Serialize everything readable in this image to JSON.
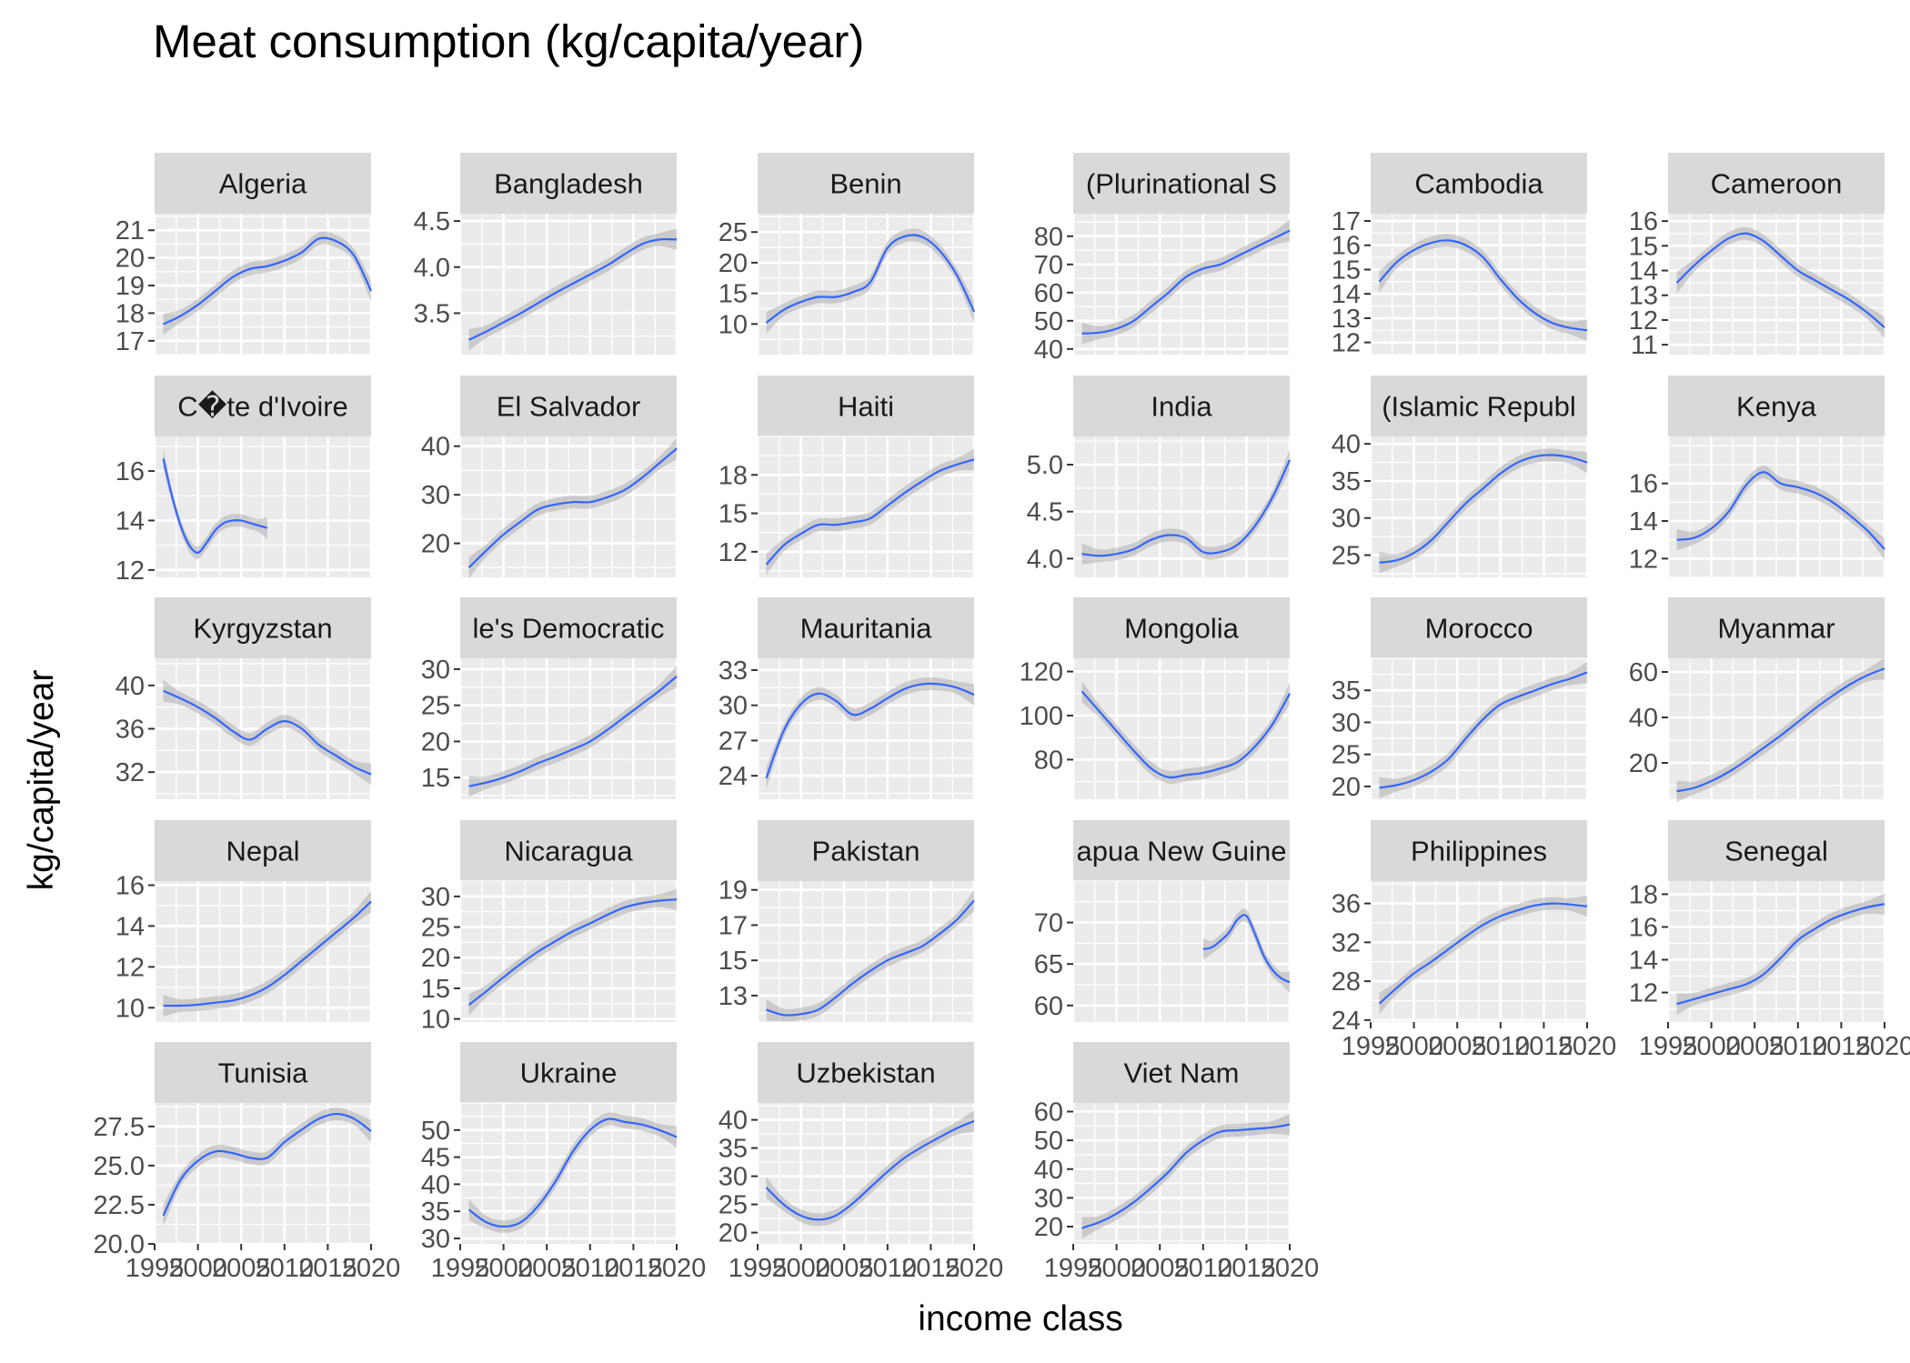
{
  "chart_data": {
    "type": "line",
    "title": "Meat consumption (kg/capita/year)",
    "xlabel": "income class",
    "ylabel": "kg/capita/year",
    "xlim": [
      1995,
      2020
    ],
    "x_ticks": [
      "1995",
      "2000",
      "2005",
      "2010",
      "2015",
      "2020"
    ],
    "grid": true,
    "series_color": "#3366ff",
    "band_color": "#999999",
    "panel_background": "#ebebeb",
    "strip_background": "#d9d9d9",
    "panels": [
      {
        "name": "Algeria",
        "ylim": [
          16.5,
          21.6
        ],
        "yticks": [
          "17",
          "18",
          "19",
          "20",
          "21"
        ],
        "x": [
          1996,
          1998,
          2000,
          2002,
          2004,
          2006,
          2008,
          2010,
          2012,
          2014,
          2016,
          2018,
          2020
        ],
        "y": [
          17.6,
          17.9,
          18.3,
          18.8,
          19.3,
          19.6,
          19.7,
          19.9,
          20.2,
          20.7,
          20.6,
          20.1,
          18.8
        ]
      },
      {
        "name": "Bangladesh",
        "ylim": [
          3.05,
          4.58
        ],
        "yticks": [
          "3.5",
          "4.0",
          "4.5"
        ],
        "x": [
          1996,
          1998,
          2000,
          2002,
          2004,
          2006,
          2008,
          2010,
          2012,
          2014,
          2016,
          2018,
          2020
        ],
        "y": [
          3.21,
          3.3,
          3.4,
          3.5,
          3.61,
          3.72,
          3.82,
          3.92,
          4.02,
          4.14,
          4.25,
          4.3,
          4.3
        ]
      },
      {
        "name": "Benin",
        "ylim": [
          5,
          28
        ],
        "yticks": [
          "10",
          "15",
          "20",
          "25"
        ],
        "x": [
          1996,
          1998,
          2000,
          2002,
          2004,
          2006,
          2008,
          2010,
          2012,
          2014,
          2016,
          2018,
          2020
        ],
        "y": [
          10.2,
          12.3,
          13.6,
          14.4,
          14.4,
          15.2,
          16.8,
          22.4,
          24.3,
          24.2,
          22.0,
          18.0,
          12.0
        ]
      },
      {
        "name": "(Plurinational S",
        "ylim": [
          38,
          88
        ],
        "yticks": [
          "40",
          "50",
          "60",
          "70",
          "80"
        ],
        "x": [
          1996,
          1998,
          2000,
          2002,
          2004,
          2006,
          2008,
          2010,
          2012,
          2014,
          2016,
          2018,
          2020
        ],
        "y": [
          45.5,
          45.8,
          47.2,
          50.0,
          55.0,
          60.0,
          65.5,
          68.5,
          70.0,
          73.0,
          76.0,
          79.0,
          82.0
        ]
      },
      {
        "name": "Cambodia",
        "ylim": [
          11.5,
          17.3
        ],
        "yticks": [
          "12",
          "13",
          "14",
          "15",
          "16",
          "17"
        ],
        "x": [
          1996,
          1998,
          2000,
          2002,
          2004,
          2006,
          2008,
          2010,
          2012,
          2014,
          2016,
          2018,
          2020
        ],
        "y": [
          14.5,
          15.3,
          15.8,
          16.1,
          16.2,
          16.0,
          15.5,
          14.6,
          13.8,
          13.2,
          12.8,
          12.6,
          12.5
        ]
      },
      {
        "name": "Cameroon",
        "ylim": [
          10.6,
          16.3
        ],
        "yticks": [
          "11",
          "12",
          "13",
          "14",
          "15",
          "16"
        ],
        "x": [
          1996,
          1998,
          2000,
          2002,
          2004,
          2006,
          2008,
          2010,
          2012,
          2014,
          2016,
          2018,
          2020
        ],
        "y": [
          13.5,
          14.2,
          14.8,
          15.3,
          15.5,
          15.2,
          14.6,
          14.0,
          13.6,
          13.2,
          12.8,
          12.3,
          11.7
        ]
      },
      {
        "name": "C�te d'Ivoire",
        "ylim": [
          11.7,
          17.4
        ],
        "yticks": [
          "12",
          "14",
          "16"
        ],
        "x": [
          1996,
          1997,
          1998,
          1999,
          2000,
          2001,
          2002,
          2003,
          2004,
          2005,
          2006,
          2007,
          2008
        ],
        "y": [
          16.5,
          15.0,
          13.8,
          13.0,
          12.7,
          13.1,
          13.6,
          13.9,
          14.0,
          14.0,
          13.9,
          13.8,
          13.7
        ]
      },
      {
        "name": "El Salvador",
        "ylim": [
          13,
          42
        ],
        "yticks": [
          "20",
          "30",
          "40"
        ],
        "x": [
          1996,
          1998,
          2000,
          2002,
          2004,
          2006,
          2008,
          2010,
          2012,
          2014,
          2016,
          2018,
          2020
        ],
        "y": [
          15.0,
          18.5,
          21.8,
          24.5,
          27.0,
          28.0,
          28.5,
          28.5,
          29.5,
          31.0,
          33.5,
          36.5,
          39.5
        ]
      },
      {
        "name": "Haiti",
        "ylim": [
          10,
          21
        ],
        "yticks": [
          "12",
          "15",
          "18"
        ],
        "x": [
          1996,
          1998,
          2000,
          2002,
          2004,
          2006,
          2008,
          2010,
          2012,
          2014,
          2016,
          2018,
          2020
        ],
        "y": [
          11.0,
          12.5,
          13.4,
          14.1,
          14.1,
          14.3,
          14.6,
          15.6,
          16.6,
          17.5,
          18.3,
          18.8,
          19.2
        ]
      },
      {
        "name": "India",
        "ylim": [
          3.8,
          5.3
        ],
        "yticks": [
          "4.0",
          "4.5",
          "5.0"
        ],
        "x": [
          1996,
          1998,
          2000,
          2002,
          2004,
          2006,
          2008,
          2010,
          2012,
          2014,
          2016,
          2018,
          2020
        ],
        "y": [
          4.05,
          4.03,
          4.05,
          4.1,
          4.2,
          4.25,
          4.22,
          4.07,
          4.07,
          4.15,
          4.35,
          4.65,
          5.05
        ]
      },
      {
        "name": "(Islamic Republ",
        "ylim": [
          22,
          41
        ],
        "yticks": [
          "25",
          "30",
          "35",
          "40"
        ],
        "x": [
          1996,
          1998,
          2000,
          2002,
          2004,
          2006,
          2008,
          2010,
          2012,
          2014,
          2016,
          2018,
          2020
        ],
        "y": [
          24.0,
          24.3,
          25.3,
          27.0,
          29.5,
          32.0,
          34.0,
          36.0,
          37.5,
          38.3,
          38.5,
          38.2,
          37.5
        ]
      },
      {
        "name": "Kenya",
        "ylim": [
          11,
          18.5
        ],
        "yticks": [
          "12",
          "14",
          "16"
        ],
        "x": [
          1996,
          1998,
          2000,
          2002,
          2004,
          2006,
          2008,
          2010,
          2012,
          2014,
          2016,
          2018,
          2020
        ],
        "y": [
          13.0,
          13.1,
          13.6,
          14.5,
          15.9,
          16.6,
          16.0,
          15.8,
          15.5,
          15.0,
          14.3,
          13.5,
          12.5
        ]
      },
      {
        "name": "Kyrgyzstan",
        "ylim": [
          29.5,
          42.5
        ],
        "yticks": [
          "32",
          "36",
          "40"
        ],
        "x": [
          1996,
          1998,
          2000,
          2002,
          2004,
          2006,
          2008,
          2010,
          2012,
          2014,
          2016,
          2018,
          2020
        ],
        "y": [
          39.5,
          38.8,
          38.0,
          37.0,
          35.8,
          35.0,
          36.0,
          36.7,
          36.0,
          34.5,
          33.5,
          32.5,
          31.8
        ]
      },
      {
        "name": "le's Democratic",
        "ylim": [
          12,
          31.5
        ],
        "yticks": [
          "15",
          "20",
          "25",
          "30"
        ],
        "x": [
          1996,
          1998,
          2000,
          2002,
          2004,
          2006,
          2008,
          2010,
          2012,
          2014,
          2016,
          2018,
          2020
        ],
        "y": [
          13.8,
          14.3,
          15.0,
          15.9,
          17.0,
          17.9,
          18.9,
          20.0,
          21.6,
          23.4,
          25.2,
          27.0,
          29.0
        ]
      },
      {
        "name": "Mauritania",
        "ylim": [
          22,
          34
        ],
        "yticks": [
          "24",
          "27",
          "30",
          "33"
        ],
        "x": [
          1996,
          1998,
          2000,
          2002,
          2004,
          2006,
          2008,
          2010,
          2012,
          2014,
          2016,
          2018,
          2020
        ],
        "y": [
          23.8,
          27.8,
          30.1,
          31.0,
          30.4,
          29.2,
          29.7,
          30.6,
          31.4,
          31.8,
          31.8,
          31.5,
          30.9
        ]
      },
      {
        "name": "Mongolia",
        "ylim": [
          62,
          126
        ],
        "yticks": [
          "80",
          "100",
          "120"
        ],
        "x": [
          1996,
          1998,
          2000,
          2002,
          2004,
          2006,
          2008,
          2010,
          2012,
          2014,
          2016,
          2018,
          2020
        ],
        "y": [
          111,
          102,
          93,
          84,
          76,
          72,
          73,
          74,
          76,
          79,
          86,
          96,
          110
        ]
      },
      {
        "name": "Morocco",
        "ylim": [
          18,
          40
        ],
        "yticks": [
          "20",
          "25",
          "30",
          "35"
        ],
        "x": [
          1996,
          1998,
          2000,
          2002,
          2004,
          2006,
          2008,
          2010,
          2012,
          2014,
          2016,
          2018,
          2020
        ],
        "y": [
          19.8,
          20.2,
          21.0,
          22.3,
          24.3,
          27.5,
          30.5,
          32.8,
          34.0,
          35.0,
          36.0,
          36.8,
          37.8
        ]
      },
      {
        "name": "Myanmar",
        "ylim": [
          4,
          66
        ],
        "yticks": [
          "20",
          "40",
          "60"
        ],
        "x": [
          1996,
          1998,
          2000,
          2002,
          2004,
          2006,
          2008,
          2010,
          2012,
          2014,
          2016,
          2018,
          2020
        ],
        "y": [
          7.5,
          9.0,
          12.0,
          16.0,
          21.0,
          26.5,
          32.0,
          38.0,
          44.0,
          49.5,
          54.5,
          58.5,
          61.5
        ]
      },
      {
        "name": "Nepal",
        "ylim": [
          9.3,
          16.2
        ],
        "yticks": [
          "10",
          "12",
          "14",
          "16"
        ],
        "x": [
          1996,
          1998,
          2000,
          2002,
          2004,
          2006,
          2008,
          2010,
          2012,
          2014,
          2016,
          2018,
          2020
        ],
        "y": [
          10.1,
          10.1,
          10.15,
          10.25,
          10.35,
          10.6,
          11.0,
          11.6,
          12.3,
          13.0,
          13.7,
          14.4,
          15.2
        ]
      },
      {
        "name": "Nicaragua",
        "ylim": [
          9.5,
          32.5
        ],
        "yticks": [
          "10",
          "15",
          "20",
          "25",
          "30"
        ],
        "x": [
          1996,
          1998,
          2000,
          2002,
          2004,
          2006,
          2008,
          2010,
          2012,
          2014,
          2016,
          2018,
          2020
        ],
        "y": [
          12.3,
          14.5,
          16.8,
          19.0,
          21.0,
          22.7,
          24.3,
          25.6,
          27.0,
          28.2,
          28.9,
          29.3,
          29.5
        ]
      },
      {
        "name": "Pakistan",
        "ylim": [
          11.5,
          19.5
        ],
        "yticks": [
          "13",
          "15",
          "17",
          "19"
        ],
        "x": [
          1996,
          1998,
          2000,
          2002,
          2004,
          2006,
          2008,
          2010,
          2012,
          2014,
          2016,
          2018,
          2020
        ],
        "y": [
          12.2,
          11.9,
          11.95,
          12.2,
          12.9,
          13.7,
          14.4,
          15.0,
          15.4,
          15.8,
          16.5,
          17.3,
          18.4
        ]
      },
      {
        "name": "apua New Guine",
        "ylim": [
          58,
          75
        ],
        "yticks": [
          "60",
          "65",
          "70"
        ],
        "x": [
          2010,
          2011,
          2012,
          2013,
          2014,
          2015,
          2016,
          2017,
          2018,
          2019,
          2020
        ],
        "y": [
          66.8,
          67.0,
          67.8,
          68.8,
          70.4,
          70.8,
          68.6,
          66.0,
          64.3,
          63.3,
          62.8
        ]
      },
      {
        "name": "Philippines",
        "ylim": [
          23.8,
          38.3
        ],
        "yticks": [
          "24",
          "28",
          "32",
          "36"
        ],
        "x": [
          1996,
          1998,
          2000,
          2002,
          2004,
          2006,
          2008,
          2010,
          2012,
          2014,
          2016,
          2018,
          2020
        ],
        "y": [
          25.7,
          27.3,
          28.8,
          30.0,
          31.3,
          32.6,
          33.8,
          34.7,
          35.3,
          35.8,
          36.0,
          35.9,
          35.7
        ]
      },
      {
        "name": "Senegal",
        "ylim": [
          10.2,
          18.8
        ],
        "yticks": [
          "12",
          "14",
          "16",
          "18"
        ],
        "x": [
          1996,
          1998,
          2000,
          2002,
          2004,
          2006,
          2008,
          2010,
          2012,
          2014,
          2016,
          2018,
          2020
        ],
        "y": [
          11.3,
          11.6,
          11.9,
          12.2,
          12.5,
          13.1,
          14.1,
          15.2,
          15.9,
          16.5,
          16.9,
          17.2,
          17.4
        ]
      },
      {
        "name": "Tunisia",
        "ylim": [
          20,
          29
        ],
        "yticks": [
          "20.0",
          "22.5",
          "25.0",
          "27.5"
        ],
        "x": [
          1996,
          1998,
          2000,
          2002,
          2004,
          2006,
          2008,
          2010,
          2012,
          2014,
          2016,
          2018,
          2020
        ],
        "y": [
          21.8,
          24.1,
          25.3,
          25.9,
          25.8,
          25.5,
          25.5,
          26.5,
          27.3,
          28.0,
          28.3,
          28.0,
          27.2
        ]
      },
      {
        "name": "Ukraine",
        "ylim": [
          29,
          55
        ],
        "yticks": [
          "30",
          "35",
          "40",
          "45",
          "50"
        ],
        "x": [
          1996,
          1998,
          2000,
          2002,
          2004,
          2006,
          2008,
          2010,
          2012,
          2014,
          2016,
          2018,
          2020
        ],
        "y": [
          35.3,
          33.0,
          32.2,
          33.0,
          36.0,
          40.5,
          46.0,
          50.0,
          52.0,
          51.5,
          51.0,
          50.0,
          48.7
        ]
      },
      {
        "name": "Uzbekistan",
        "ylim": [
          18,
          43
        ],
        "yticks": [
          "20",
          "25",
          "30",
          "35",
          "40"
        ],
        "x": [
          1996,
          1998,
          2000,
          2002,
          2004,
          2006,
          2008,
          2010,
          2012,
          2014,
          2016,
          2018,
          2020
        ],
        "y": [
          28.0,
          25.0,
          23.0,
          22.3,
          23.0,
          25.2,
          28.0,
          30.8,
          33.3,
          35.2,
          36.9,
          38.5,
          39.8
        ]
      },
      {
        "name": "Viet Nam",
        "ylim": [
          14,
          63
        ],
        "yticks": [
          "20",
          "30",
          "40",
          "50",
          "60"
        ],
        "x": [
          1996,
          1998,
          2000,
          2002,
          2004,
          2006,
          2008,
          2010,
          2012,
          2014,
          2016,
          2018,
          2020
        ],
        "y": [
          19.5,
          21.5,
          24.5,
          28.5,
          33.5,
          39.0,
          45.5,
          50.0,
          53.0,
          53.5,
          54.0,
          54.5,
          55.5
        ]
      }
    ]
  }
}
